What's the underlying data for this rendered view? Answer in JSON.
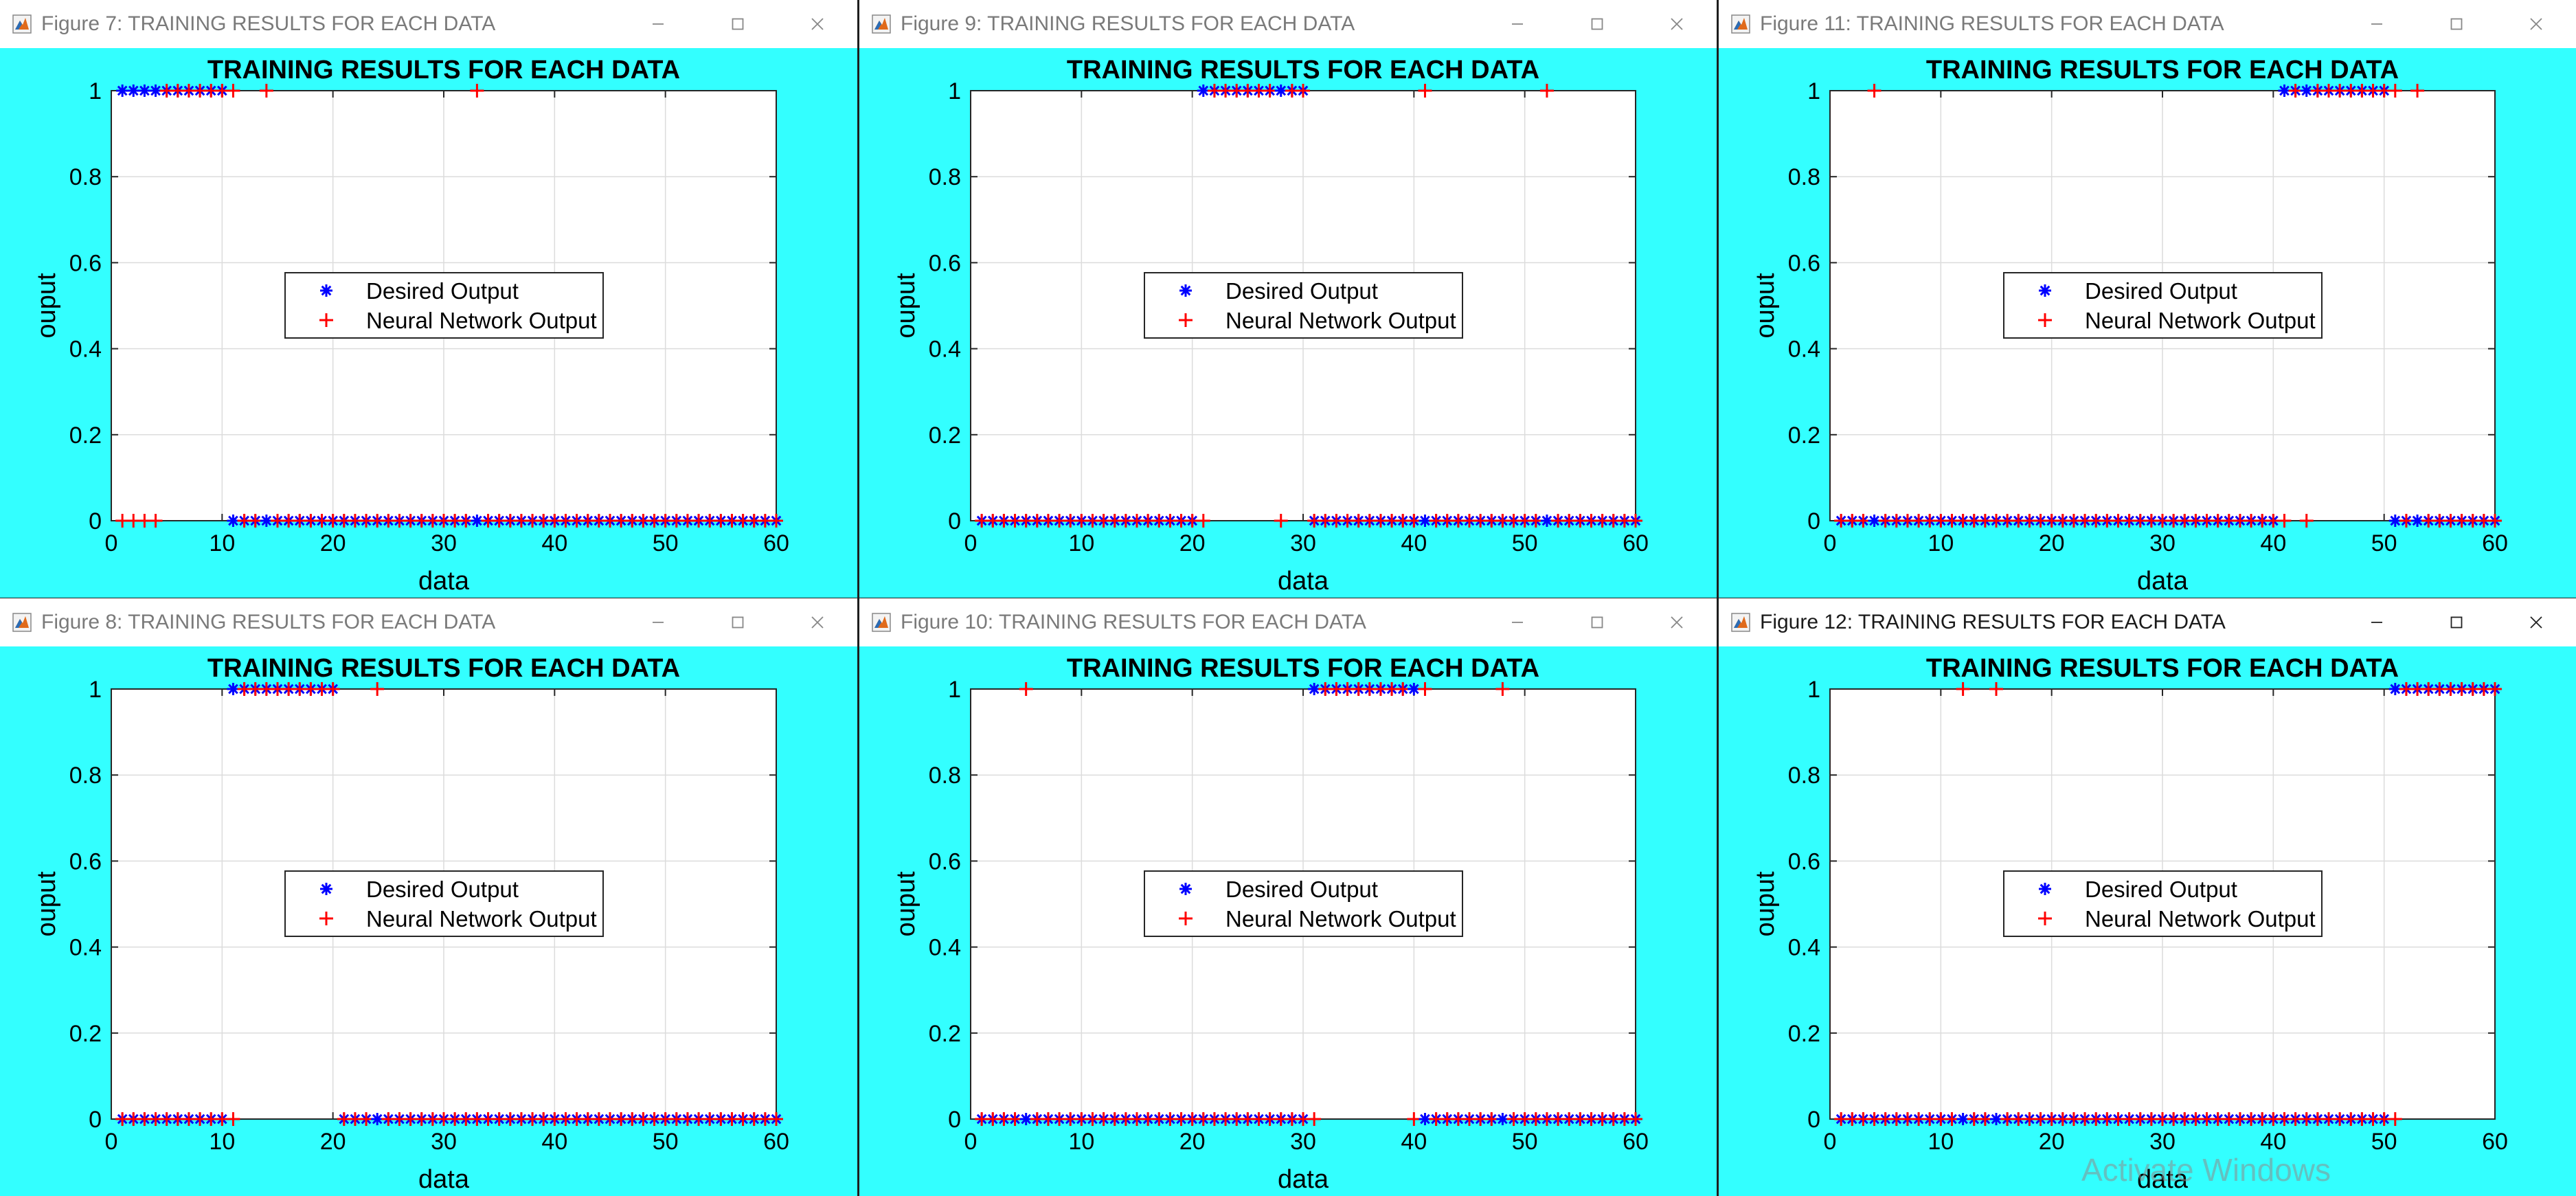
{
  "windows": [
    {
      "title": "Figure 7: TRAINING RESULTS FOR EACH DATA",
      "active": false
    },
    {
      "title": "Figure 9: TRAINING RESULTS FOR EACH DATA",
      "active": false
    },
    {
      "title": "Figure 11: TRAINING RESULTS FOR EACH DATA",
      "active": false
    },
    {
      "title": "Figure 8: TRAINING RESULTS FOR EACH DATA",
      "active": false
    },
    {
      "title": "Figure 10: TRAINING RESULTS FOR EACH DATA",
      "active": false
    },
    {
      "title": "Figure 12: TRAINING RESULTS FOR EACH DATA",
      "active": true
    }
  ],
  "watermark": "Activate Windows",
  "colors": {
    "figure_bg": "#33ffff",
    "desired": "#0000ff",
    "network": "#ff0000",
    "grid": "#dcdcdc"
  },
  "chart_data": [
    {
      "type": "scatter",
      "title": "TRAINING RESULTS FOR EACH DATA",
      "xlabel": "data",
      "ylabel": "ouput",
      "xlim": [
        0,
        60
      ],
      "ylim": [
        0,
        1
      ],
      "xticks": [
        0,
        10,
        20,
        30,
        40,
        50,
        60
      ],
      "yticks": [
        0,
        0.2,
        0.4,
        0.6,
        0.8,
        1
      ],
      "grid": true,
      "legend_position": "center",
      "series": [
        {
          "name": "Desired Output",
          "marker": "*",
          "ones": [
            [
              1,
              10
            ]
          ]
        },
        {
          "name": "Neural Network Output",
          "marker": "+",
          "ones": [
            [
              5,
              10
            ],
            [
              11,
              11
            ],
            [
              14,
              14
            ],
            [
              33,
              33
            ]
          ]
        }
      ]
    },
    {
      "type": "scatter",
      "title": "TRAINING RESULTS FOR EACH DATA",
      "xlabel": "data",
      "ylabel": "ouput",
      "xlim": [
        0,
        60
      ],
      "ylim": [
        0,
        1
      ],
      "xticks": [
        0,
        10,
        20,
        30,
        40,
        50,
        60
      ],
      "yticks": [
        0,
        0.2,
        0.4,
        0.6,
        0.8,
        1
      ],
      "grid": true,
      "legend_position": "center",
      "series": [
        {
          "name": "Desired Output",
          "marker": "*",
          "ones": [
            [
              21,
              30
            ]
          ]
        },
        {
          "name": "Neural Network Output",
          "marker": "+",
          "ones": [
            [
              22,
              27
            ],
            [
              29,
              30
            ],
            [
              41,
              41
            ],
            [
              52,
              52
            ]
          ]
        }
      ]
    },
    {
      "type": "scatter",
      "title": "TRAINING RESULTS FOR EACH DATA",
      "xlabel": "data",
      "ylabel": "ouput",
      "xlim": [
        0,
        60
      ],
      "ylim": [
        0,
        1
      ],
      "xticks": [
        0,
        10,
        20,
        30,
        40,
        50,
        60
      ],
      "yticks": [
        0,
        0.2,
        0.4,
        0.6,
        0.8,
        1
      ],
      "grid": true,
      "legend_position": "center",
      "series": [
        {
          "name": "Desired Output",
          "marker": "*",
          "ones": [
            [
              41,
              50
            ]
          ]
        },
        {
          "name": "Neural Network Output",
          "marker": "+",
          "ones": [
            [
              4,
              4
            ],
            [
              42,
              42
            ],
            [
              44,
              50
            ],
            [
              51,
              51
            ],
            [
              53,
              53
            ]
          ]
        }
      ]
    },
    {
      "type": "scatter",
      "title": "TRAINING RESULTS FOR EACH DATA",
      "xlabel": "data",
      "ylabel": "ouput",
      "xlim": [
        0,
        60
      ],
      "ylim": [
        0,
        1
      ],
      "xticks": [
        0,
        10,
        20,
        30,
        40,
        50,
        60
      ],
      "yticks": [
        0,
        0.2,
        0.4,
        0.6,
        0.8,
        1
      ],
      "grid": true,
      "legend_position": "center",
      "series": [
        {
          "name": "Desired Output",
          "marker": "*",
          "ones": [
            [
              11,
              20
            ]
          ]
        },
        {
          "name": "Neural Network Output",
          "marker": "+",
          "ones": [
            [
              12,
              20
            ],
            [
              24,
              24
            ]
          ]
        }
      ]
    },
    {
      "type": "scatter",
      "title": "TRAINING RESULTS FOR EACH DATA",
      "xlabel": "data",
      "ylabel": "ouput",
      "xlim": [
        0,
        60
      ],
      "ylim": [
        0,
        1
      ],
      "xticks": [
        0,
        10,
        20,
        30,
        40,
        50,
        60
      ],
      "yticks": [
        0,
        0.2,
        0.4,
        0.6,
        0.8,
        1
      ],
      "grid": true,
      "legend_position": "center",
      "series": [
        {
          "name": "Desired Output",
          "marker": "*",
          "ones": [
            [
              31,
              40
            ]
          ]
        },
        {
          "name": "Neural Network Output",
          "marker": "+",
          "ones": [
            [
              5,
              5
            ],
            [
              32,
              39
            ],
            [
              41,
              41
            ],
            [
              48,
              48
            ]
          ]
        }
      ]
    },
    {
      "type": "scatter",
      "title": "TRAINING RESULTS FOR EACH DATA",
      "xlabel": "data",
      "ylabel": "ouput",
      "xlim": [
        0,
        60
      ],
      "ylim": [
        0,
        1
      ],
      "xticks": [
        0,
        10,
        20,
        30,
        40,
        50,
        60
      ],
      "yticks": [
        0,
        0.2,
        0.4,
        0.6,
        0.8,
        1
      ],
      "grid": true,
      "legend_position": "center",
      "series": [
        {
          "name": "Desired Output",
          "marker": "*",
          "ones": [
            [
              51,
              60
            ]
          ]
        },
        {
          "name": "Neural Network Output",
          "marker": "+",
          "ones": [
            [
              12,
              12
            ],
            [
              15,
              15
            ],
            [
              52,
              60
            ]
          ]
        }
      ]
    }
  ]
}
